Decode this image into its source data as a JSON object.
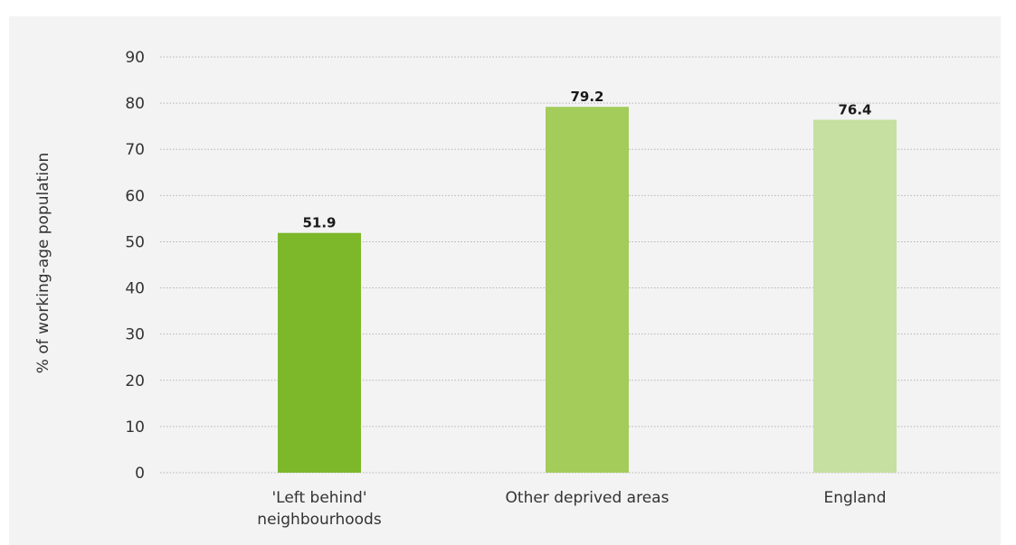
{
  "chart_data": {
    "type": "bar",
    "title": "",
    "xlabel": "",
    "ylabel": "% of working-age population",
    "categories": [
      [
        "'Left behind'",
        "neighbourhoods"
      ],
      [
        "Other deprived areas"
      ],
      [
        "England"
      ]
    ],
    "values": [
      51.9,
      79.2,
      76.4
    ],
    "value_labels": [
      "51.9",
      "79.2",
      "76.4"
    ],
    "bar_colors": [
      "#7cb82a",
      "#a3cc5b",
      "#c5e0a0"
    ],
    "ylim": [
      0,
      90
    ],
    "yticks": [
      0,
      10,
      20,
      30,
      40,
      50,
      60,
      70,
      80,
      90
    ],
    "grid": true,
    "legend": "none"
  },
  "colors": {
    "panel_background": "#f3f3f3",
    "gridline": "#b5b5b5",
    "title_accent": "#7dbb2a"
  }
}
